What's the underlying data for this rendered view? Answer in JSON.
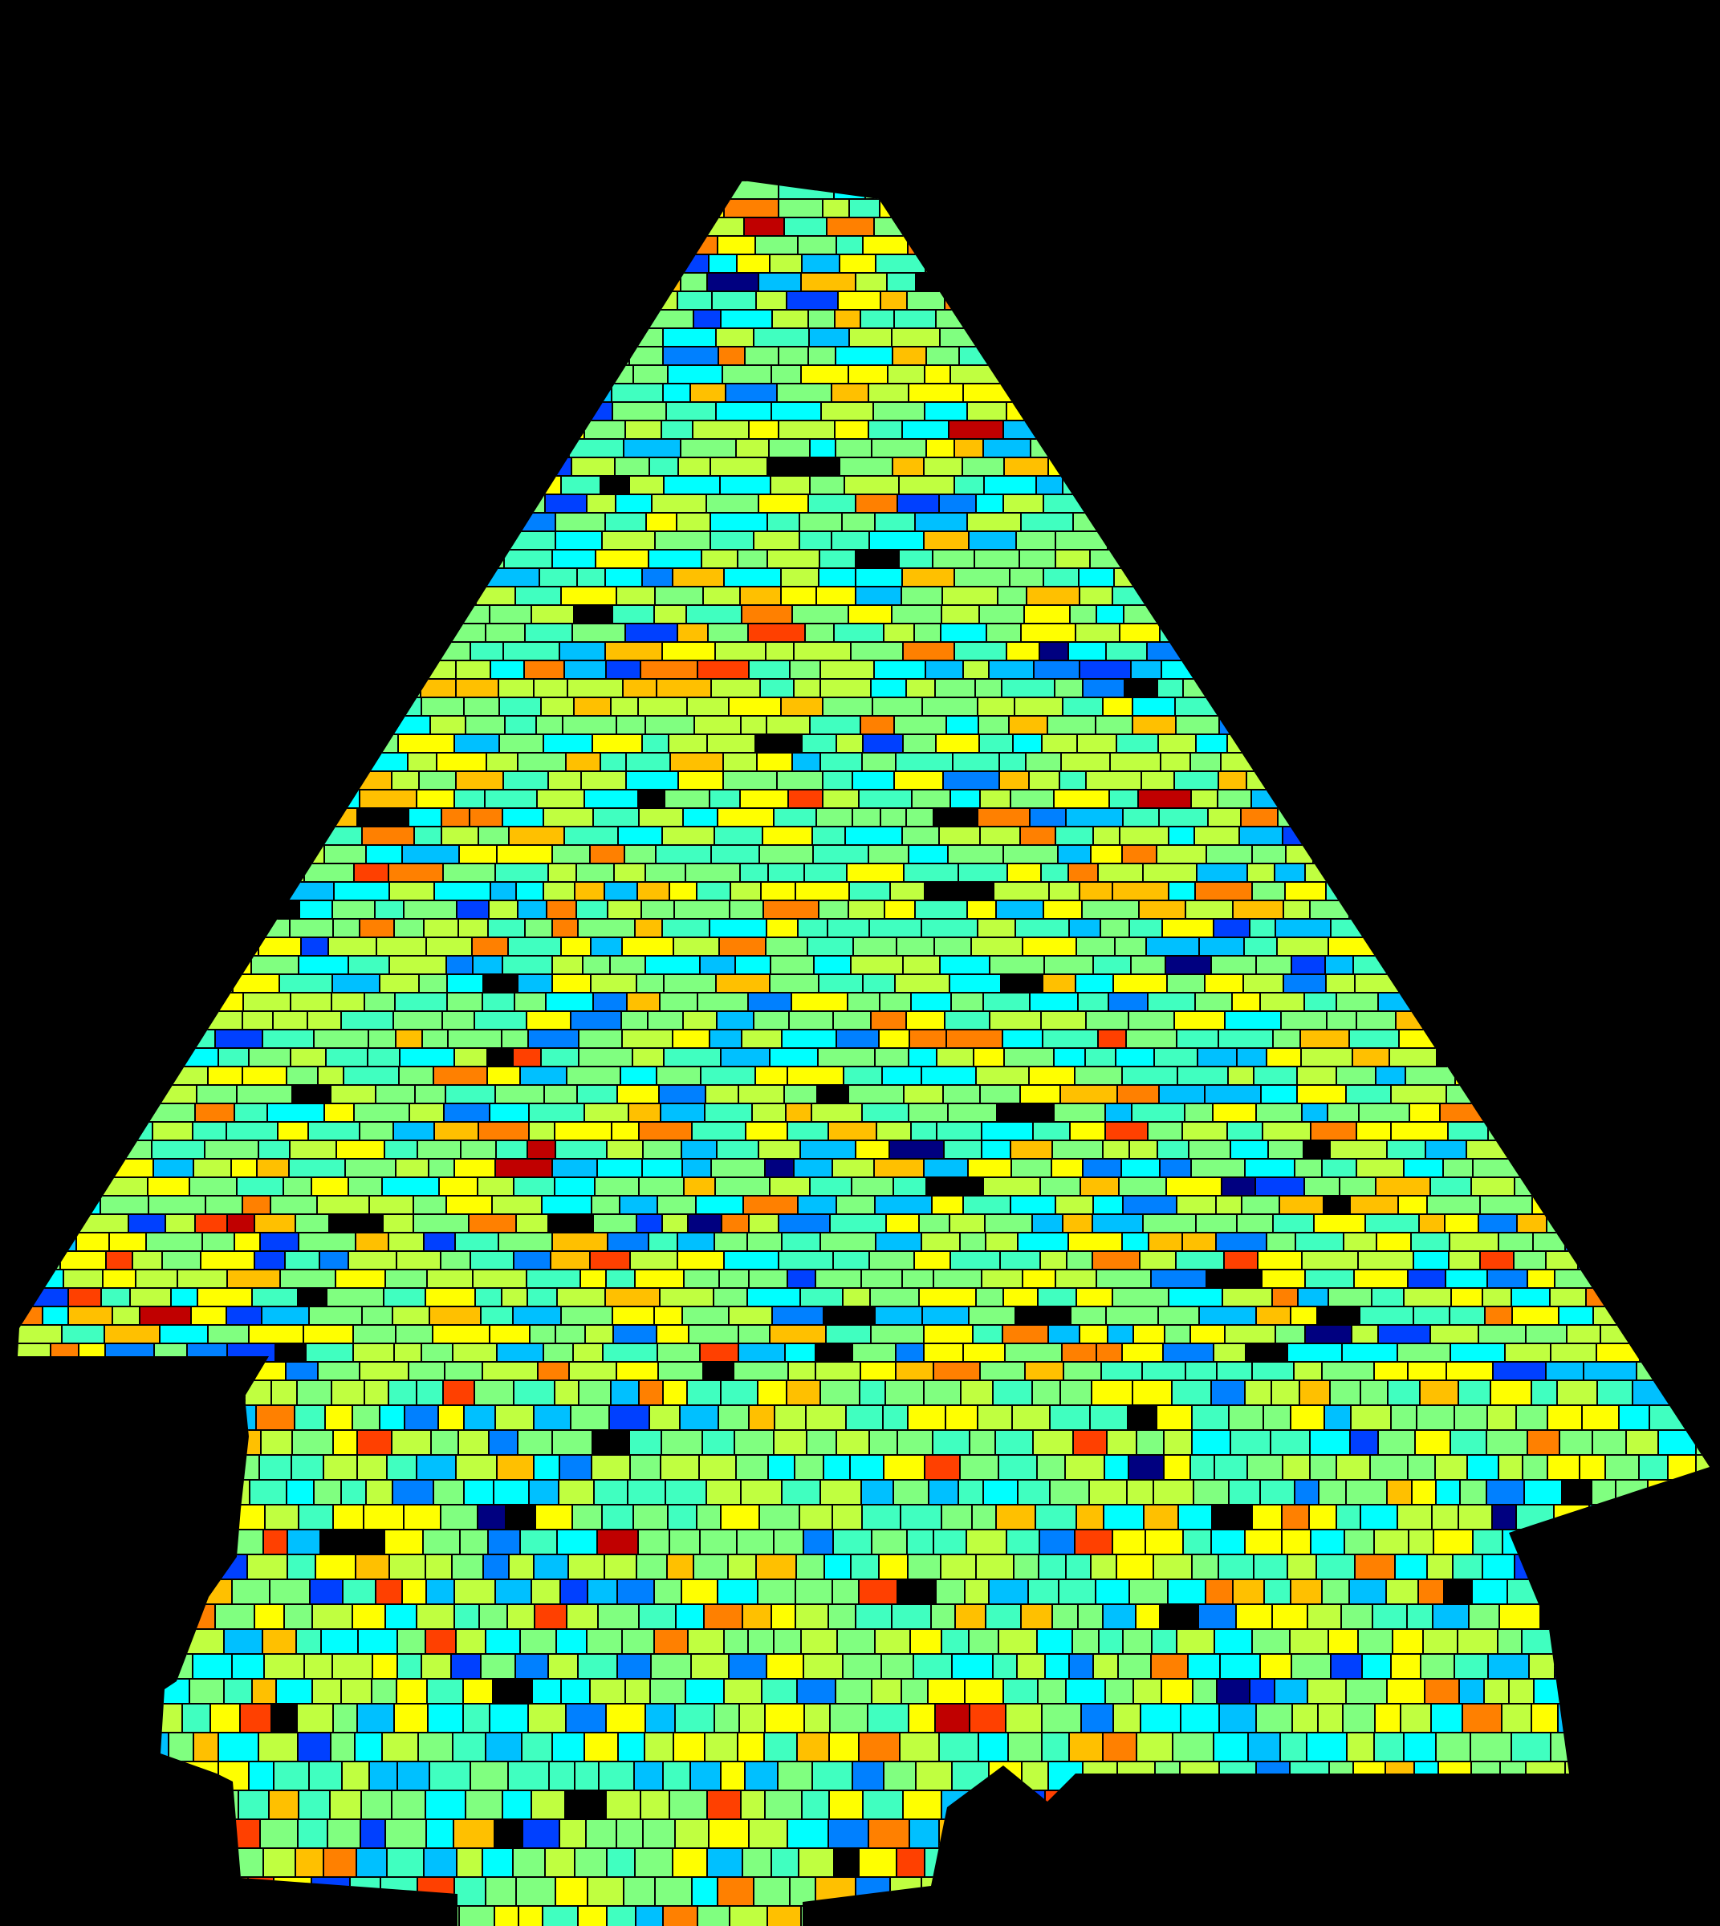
{
  "figure": {
    "background": "#000000",
    "outline_color": "#000000",
    "colormap": "jet",
    "palette": [
      "#000080",
      "#0040ff",
      "#0080ff",
      "#00c0ff",
      "#00ffff",
      "#40ffc0",
      "#80ff80",
      "#c0ff40",
      "#ffff00",
      "#ffc000",
      "#ff8000",
      "#ff4000",
      "#c00000"
    ],
    "shape": "pyramid-shaped masonry wall map with stepped base",
    "printed_text": ""
  }
}
